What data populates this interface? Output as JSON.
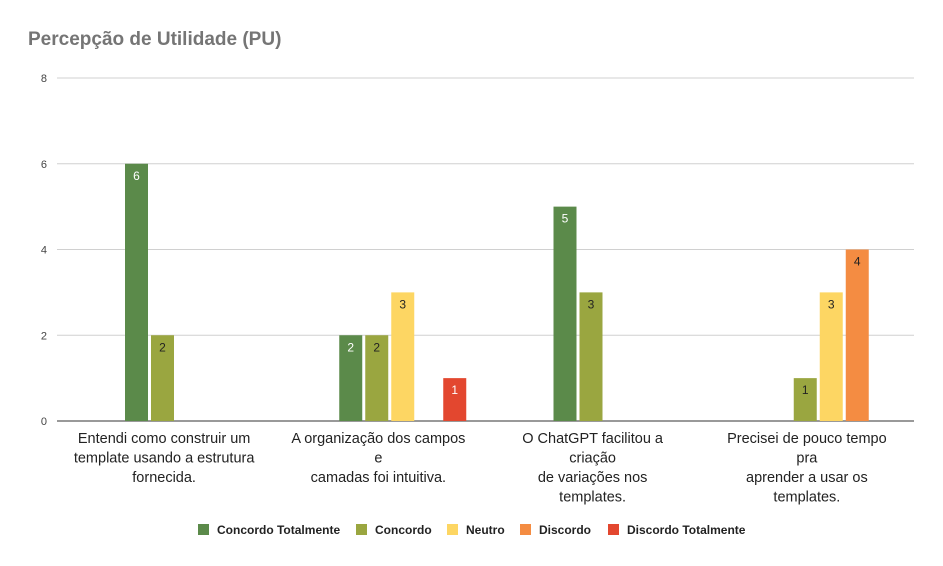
{
  "chart_data": {
    "type": "bar",
    "title": "Percepção de Utilidade (PU)",
    "xlabel": "",
    "ylabel": "",
    "ylim": [
      0,
      8
    ],
    "yticks": [
      0,
      2,
      4,
      6,
      8
    ],
    "grid": true,
    "legend_position": "bottom",
    "categories": [
      [
        "Entendi como construir um",
        "template usando a estrutura",
        "fornecida."
      ],
      [
        "A organização dos campos",
        "e",
        "camadas foi intuitiva."
      ],
      [
        "O ChatGPT facilitou a",
        "criação",
        "de variações nos",
        "templates."
      ],
      [
        "Precisei de pouco tempo",
        "pra",
        "aprender a usar os",
        "templates."
      ]
    ],
    "series": [
      {
        "name": "Concordo Totalmente",
        "color": "#5b8a4a",
        "label_color": "#ffffff",
        "values": [
          6,
          2,
          5,
          null
        ]
      },
      {
        "name": "Concordo",
        "color": "#9aa640",
        "label_color": "#222222",
        "values": [
          2,
          2,
          3,
          1
        ]
      },
      {
        "name": "Neutro",
        "color": "#fdd663",
        "label_color": "#222222",
        "values": [
          null,
          3,
          null,
          3
        ]
      },
      {
        "name": "Discordo",
        "color": "#f48c42",
        "label_color": "#222222",
        "values": [
          null,
          null,
          null,
          4
        ]
      },
      {
        "name": "Discordo Totalmente",
        "color": "#e3472f",
        "label_color": "#ffffff",
        "values": [
          null,
          1,
          null,
          null
        ]
      }
    ]
  }
}
